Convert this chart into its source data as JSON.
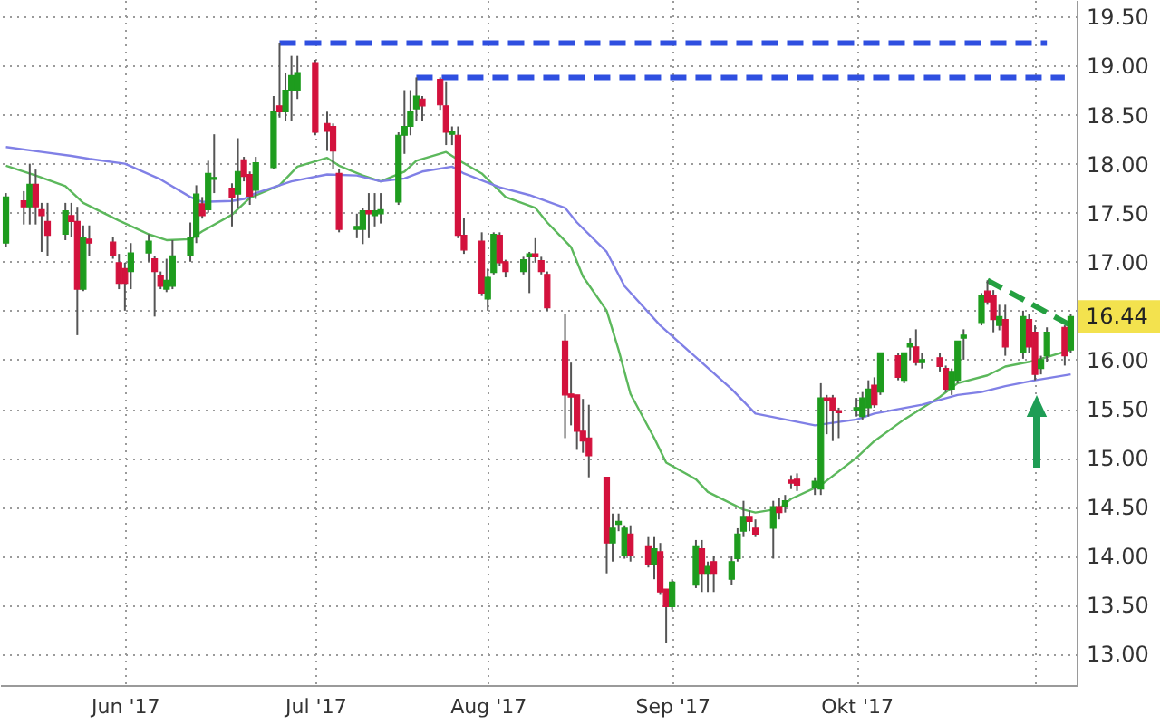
{
  "chart_data": {
    "type": "candlestick",
    "x": [
      "2017-05-12",
      "2017-05-15",
      "2017-05-16",
      "2017-05-17",
      "2017-05-18",
      "2017-05-19",
      "2017-05-22",
      "2017-05-23",
      "2017-05-24",
      "2017-05-25",
      "2017-05-26",
      "2017-05-30",
      "2017-05-31",
      "2017-06-01",
      "2017-06-02",
      "2017-06-05",
      "2017-06-06",
      "2017-06-07",
      "2017-06-08",
      "2017-06-09",
      "2017-06-12",
      "2017-06-13",
      "2017-06-14",
      "2017-06-15",
      "2017-06-16",
      "2017-06-19",
      "2017-06-20",
      "2017-06-21",
      "2017-06-22",
      "2017-06-23",
      "2017-06-26",
      "2017-06-27",
      "2017-06-28",
      "2017-06-29",
      "2017-06-30",
      "2017-07-03",
      "2017-07-05",
      "2017-07-06",
      "2017-07-07",
      "2017-07-10",
      "2017-07-11",
      "2017-07-12",
      "2017-07-13",
      "2017-07-14",
      "2017-07-17",
      "2017-07-18",
      "2017-07-19",
      "2017-07-20",
      "2017-07-21",
      "2017-07-24",
      "2017-07-25",
      "2017-07-26",
      "2017-07-27",
      "2017-07-28",
      "2017-07-31",
      "2017-08-01",
      "2017-08-02",
      "2017-08-03",
      "2017-08-04",
      "2017-08-07",
      "2017-08-08",
      "2017-08-09",
      "2017-08-10",
      "2017-08-11",
      "2017-08-14",
      "2017-08-15",
      "2017-08-16",
      "2017-08-17",
      "2017-08-18",
      "2017-08-21",
      "2017-08-22",
      "2017-08-23",
      "2017-08-24",
      "2017-08-25",
      "2017-08-28",
      "2017-08-29",
      "2017-08-30",
      "2017-08-31",
      "2017-09-01",
      "2017-09-05",
      "2017-09-06",
      "2017-09-07",
      "2017-09-08",
      "2017-09-11",
      "2017-09-12",
      "2017-09-13",
      "2017-09-14",
      "2017-09-15",
      "2017-09-18",
      "2017-09-19",
      "2017-09-20",
      "2017-09-21",
      "2017-09-22",
      "2017-09-25",
      "2017-09-26",
      "2017-09-27",
      "2017-09-28",
      "2017-09-29",
      "2017-10-02",
      "2017-10-03",
      "2017-10-04",
      "2017-10-05",
      "2017-10-06",
      "2017-10-09",
      "2017-10-10",
      "2017-10-11",
      "2017-10-12",
      "2017-10-13",
      "2017-10-16",
      "2017-10-17",
      "2017-10-18",
      "2017-10-19",
      "2017-10-20",
      "2017-10-23",
      "2017-10-24",
      "2017-10-25",
      "2017-10-26",
      "2017-10-27",
      "2017-10-30",
      "2017-10-31",
      "2017-11-01",
      "2017-11-02",
      "2017-11-03",
      "2017-11-06",
      "2017-11-07"
    ],
    "ohlc": [
      [
        17.19,
        17.7,
        17.15,
        17.66
      ],
      [
        17.62,
        17.72,
        17.38,
        17.56
      ],
      [
        17.56,
        18.0,
        17.38,
        17.79
      ],
      [
        17.79,
        17.94,
        17.38,
        17.56
      ],
      [
        17.53,
        17.6,
        17.1,
        17.47
      ],
      [
        17.41,
        17.6,
        17.06,
        17.27
      ],
      [
        17.28,
        17.6,
        17.22,
        17.52
      ],
      [
        17.47,
        17.6,
        17.25,
        17.41
      ],
      [
        17.41,
        17.56,
        16.25,
        16.72
      ],
      [
        16.72,
        17.37,
        16.7,
        17.25
      ],
      [
        17.23,
        17.37,
        17.06,
        17.19
      ],
      [
        17.2,
        17.25,
        17.03,
        17.06
      ],
      [
        16.99,
        17.08,
        16.72,
        16.78
      ],
      [
        16.93,
        16.99,
        16.5,
        16.78
      ],
      [
        16.9,
        17.19,
        16.72,
        17.09
      ],
      [
        17.09,
        17.28,
        17.0,
        17.21
      ],
      [
        17.03,
        17.06,
        16.44,
        16.9
      ],
      [
        16.86,
        16.9,
        16.72,
        16.75
      ],
      [
        16.72,
        17.03,
        16.69,
        16.81
      ],
      [
        16.75,
        17.22,
        16.72,
        17.06
      ],
      [
        17.06,
        17.4,
        17.0,
        17.25
      ],
      [
        17.25,
        17.78,
        17.19,
        17.69
      ],
      [
        17.59,
        17.66,
        17.44,
        17.47
      ],
      [
        17.53,
        18.03,
        17.5,
        17.9
      ],
      [
        17.84,
        18.3,
        17.7,
        17.86
      ],
      [
        17.75,
        17.8,
        17.36,
        17.65
      ],
      [
        17.69,
        18.26,
        17.55,
        17.92
      ],
      [
        18.04,
        18.07,
        17.82,
        17.87
      ],
      [
        17.89,
        17.92,
        17.58,
        17.67
      ],
      [
        17.73,
        18.07,
        17.64,
        18.01
      ],
      [
        17.96,
        18.69,
        17.95,
        18.53
      ],
      [
        18.59,
        19.23,
        18.47,
        18.53
      ],
      [
        18.53,
        18.93,
        18.44,
        18.75
      ],
      [
        18.75,
        19.1,
        18.44,
        18.9
      ],
      [
        18.75,
        19.1,
        18.66,
        18.93
      ],
      [
        19.03,
        19.06,
        18.29,
        18.32
      ],
      [
        18.41,
        18.53,
        18.13,
        18.33
      ],
      [
        18.38,
        18.41,
        17.95,
        18.13
      ],
      [
        17.9,
        17.95,
        17.3,
        17.33
      ],
      [
        17.33,
        17.49,
        17.24,
        17.36
      ],
      [
        17.33,
        17.55,
        17.18,
        17.52
      ],
      [
        17.52,
        17.7,
        17.24,
        17.49
      ],
      [
        17.47,
        17.7,
        17.36,
        17.52
      ],
      [
        17.49,
        17.7,
        17.39,
        17.53
      ],
      [
        17.61,
        18.32,
        17.58,
        18.29
      ],
      [
        18.29,
        18.75,
        18.1,
        18.38
      ],
      [
        18.38,
        18.75,
        18.29,
        18.53
      ],
      [
        18.56,
        18.88,
        18.44,
        18.69
      ],
      [
        18.66,
        18.69,
        18.44,
        18.59
      ],
      [
        18.86,
        18.88,
        18.55,
        18.6
      ],
      [
        18.59,
        18.84,
        18.19,
        18.32
      ],
      [
        18.3,
        18.38,
        18.19,
        18.33
      ],
      [
        18.29,
        18.38,
        17.24,
        17.27
      ],
      [
        17.27,
        17.45,
        17.08,
        17.12
      ],
      [
        17.21,
        17.3,
        16.65,
        16.68
      ],
      [
        16.62,
        16.93,
        16.5,
        16.84
      ],
      [
        16.89,
        17.3,
        16.87,
        17.28
      ],
      [
        17.27,
        17.3,
        16.96,
        16.99
      ],
      [
        17.0,
        17.02,
        16.84,
        16.9
      ],
      [
        16.9,
        17.05,
        16.87,
        17.02
      ],
      [
        17.05,
        17.1,
        16.68,
        17.08
      ],
      [
        17.08,
        17.24,
        16.99,
        17.05
      ],
      [
        17.01,
        17.05,
        16.87,
        16.9
      ],
      [
        16.87,
        16.9,
        16.5,
        16.53
      ],
      [
        16.19,
        16.47,
        15.2,
        15.64
      ],
      [
        15.65,
        15.97,
        15.33,
        15.62
      ],
      [
        15.64,
        15.64,
        15.08,
        15.27
      ],
      [
        15.27,
        15.6,
        15.05,
        15.17
      ],
      [
        15.2,
        15.54,
        14.8,
        15.02
      ],
      [
        14.8,
        14.8,
        13.82,
        14.13
      ],
      [
        14.13,
        14.43,
        13.94,
        14.28
      ],
      [
        14.32,
        14.43,
        14.25,
        14.35
      ],
      [
        14.0,
        14.31,
        13.97,
        14.28
      ],
      [
        14.22,
        14.31,
        13.94,
        14.0
      ],
      [
        14.1,
        14.19,
        13.88,
        13.91
      ],
      [
        13.91,
        14.19,
        13.76,
        14.07
      ],
      [
        14.04,
        14.13,
        13.6,
        13.63
      ],
      [
        13.66,
        13.66,
        13.11,
        13.48
      ],
      [
        13.48,
        13.76,
        13.45,
        13.73
      ],
      [
        13.7,
        14.16,
        13.67,
        14.1
      ],
      [
        14.07,
        14.16,
        13.63,
        13.82
      ],
      [
        13.82,
        13.94,
        13.63,
        13.89
      ],
      [
        13.94,
        14.0,
        13.63,
        13.82
      ],
      [
        13.76,
        14.0,
        13.7,
        13.94
      ],
      [
        13.97,
        14.28,
        13.94,
        14.22
      ],
      [
        14.25,
        14.56,
        14.19,
        14.4
      ],
      [
        14.4,
        14.46,
        14.25,
        14.35
      ],
      [
        14.28,
        14.37,
        14.19,
        14.22
      ],
      [
        14.28,
        14.56,
        13.97,
        14.5
      ],
      [
        14.5,
        14.59,
        14.37,
        14.44
      ],
      [
        14.5,
        14.62,
        14.44,
        14.56
      ],
      [
        14.77,
        14.82,
        14.68,
        14.74
      ],
      [
        14.78,
        14.84,
        14.66,
        14.72
      ],
      [
        14.7,
        14.8,
        14.62,
        14.76
      ],
      [
        14.68,
        15.76,
        14.62,
        15.61
      ],
      [
        15.61,
        15.64,
        15.24,
        15.58
      ],
      [
        15.61,
        15.64,
        15.17,
        15.48
      ],
      [
        15.48,
        15.51,
        15.2,
        15.46
      ],
      [
        15.48,
        15.61,
        15.42,
        15.51
      ],
      [
        15.42,
        15.67,
        15.39,
        15.61
      ],
      [
        15.51,
        15.79,
        15.42,
        15.7
      ],
      [
        15.74,
        15.82,
        15.51,
        15.54
      ],
      [
        15.67,
        16.07,
        15.64,
        16.07
      ],
      [
        16.04,
        16.07,
        15.79,
        15.82
      ],
      [
        15.79,
        16.07,
        15.76,
        16.07
      ],
      [
        16.13,
        16.22,
        16.0,
        16.16
      ],
      [
        16.13,
        16.31,
        15.94,
        15.97
      ],
      [
        15.97,
        16.07,
        15.91,
        16.0
      ],
      [
        16.02,
        16.07,
        15.88,
        15.93
      ],
      [
        15.91,
        15.94,
        15.67,
        15.7
      ],
      [
        15.7,
        15.91,
        15.64,
        15.88
      ],
      [
        15.79,
        16.19,
        15.76,
        16.19
      ],
      [
        16.22,
        16.31,
        16.0,
        16.25
      ],
      [
        16.38,
        16.68,
        16.35,
        16.65
      ],
      [
        16.7,
        16.81,
        16.56,
        16.59
      ],
      [
        16.66,
        16.71,
        16.28,
        16.41
      ],
      [
        16.35,
        16.56,
        16.3,
        16.44
      ],
      [
        16.41,
        16.56,
        16.04,
        16.13
      ],
      [
        16.07,
        16.5,
        16.01,
        16.44
      ],
      [
        16.41,
        16.47,
        16.07,
        16.13
      ],
      [
        16.28,
        16.35,
        15.79,
        15.85
      ],
      [
        15.91,
        16.04,
        15.85,
        16.0
      ],
      [
        16.04,
        16.33,
        15.98,
        16.28
      ],
      [
        16.33,
        16.35,
        15.94,
        16.04
      ],
      [
        16.1,
        16.47,
        16.07,
        16.44
      ]
    ],
    "colors": [
      "#1e9c1e",
      "#d3123d",
      "#1e9c1e",
      "#d3123d",
      "#d3123d",
      "#d3123d",
      "#1e9c1e",
      "#d3123d",
      "#d3123d",
      "#1e9c1e",
      "#d3123d",
      "#d3123d",
      "#d3123d",
      "#d3123d",
      "#1e9c1e",
      "#1e9c1e",
      "#d3123d",
      "#d3123d",
      "#1e9c1e",
      "#1e9c1e",
      "#1e9c1e",
      "#1e9c1e",
      "#d3123d",
      "#1e9c1e",
      "#1e9c1e",
      "#d3123d",
      "#1e9c1e",
      "#d3123d",
      "#d3123d",
      "#1e9c1e",
      "#1e9c1e",
      "#d3123d",
      "#1e9c1e",
      "#1e9c1e",
      "#1e9c1e",
      "#d3123d",
      "#d3123d",
      "#d3123d",
      "#d3123d",
      "#1e9c1e",
      "#1e9c1e",
      "#d3123d",
      "#1e9c1e",
      "#1e9c1e",
      "#1e9c1e",
      "#1e9c1e",
      "#1e9c1e",
      "#1e9c1e",
      "#d3123d",
      "#d3123d",
      "#d3123d",
      "#1e9c1e",
      "#d3123d",
      "#d3123d",
      "#d3123d",
      "#1e9c1e",
      "#1e9c1e",
      "#d3123d",
      "#d3123d",
      "#1e9c1e",
      "#1e9c1e",
      "#d3123d",
      "#d3123d",
      "#d3123d",
      "#d3123d",
      "#d3123d",
      "#d3123d",
      "#d3123d",
      "#d3123d",
      "#d3123d",
      "#1e9c1e",
      "#1e9c1e",
      "#1e9c1e",
      "#d3123d",
      "#d3123d",
      "#1e9c1e",
      "#d3123d",
      "#d3123d",
      "#1e9c1e",
      "#1e9c1e",
      "#d3123d",
      "#1e9c1e",
      "#d3123d",
      "#1e9c1e",
      "#1e9c1e",
      "#1e9c1e",
      "#d3123d",
      "#d3123d",
      "#1e9c1e",
      "#d3123d",
      "#1e9c1e",
      "#d3123d",
      "#d3123d",
      "#1e9c1e",
      "#1e9c1e",
      "#d3123d",
      "#d3123d",
      "#d3123d",
      "#1e9c1e",
      "#1e9c1e",
      "#1e9c1e",
      "#d3123d",
      "#1e9c1e",
      "#d3123d",
      "#1e9c1e",
      "#1e9c1e",
      "#d3123d",
      "#1e9c1e",
      "#d3123d",
      "#d3123d",
      "#1e9c1e",
      "#1e9c1e",
      "#1e9c1e",
      "#1e9c1e",
      "#d3123d",
      "#d3123d",
      "#1e9c1e",
      "#d3123d",
      "#1e9c1e",
      "#d3123d",
      "#d3123d",
      "#1e9c1e",
      "#1e9c1e",
      "#d3123d",
      "#1e9c1e"
    ],
    "series": [
      {
        "type": "line",
        "color": "#5cb85c",
        "x": [
          "2017-05-12",
          "2017-05-17",
          "2017-05-22",
          "2017-05-25",
          "2017-05-31",
          "2017-06-05",
          "2017-06-08",
          "2017-06-12",
          "2017-06-14",
          "2017-06-19",
          "2017-06-22",
          "2017-06-27",
          "2017-06-30",
          "2017-07-05",
          "2017-07-07",
          "2017-07-11",
          "2017-07-14",
          "2017-07-18",
          "2017-07-20",
          "2017-07-25",
          "2017-07-27",
          "2017-07-31",
          "2017-08-02",
          "2017-08-04",
          "2017-08-09",
          "2017-08-11",
          "2017-08-15",
          "2017-08-17",
          "2017-08-21",
          "2017-08-23",
          "2017-08-25",
          "2017-08-29",
          "2017-08-31",
          "2017-09-05",
          "2017-09-07",
          "2017-09-11",
          "2017-09-13",
          "2017-09-15",
          "2017-09-19",
          "2017-09-21",
          "2017-09-26",
          "2017-10-02",
          "2017-10-05",
          "2017-10-10",
          "2017-10-16",
          "2017-10-19",
          "2017-10-24",
          "2017-10-27",
          "2017-11-01",
          "2017-11-07"
        ],
        "values": [
          17.98,
          17.88,
          17.77,
          17.6,
          17.42,
          17.28,
          17.22,
          17.23,
          17.31,
          17.48,
          17.65,
          17.78,
          17.97,
          18.06,
          17.98,
          17.88,
          17.82,
          17.92,
          18.03,
          18.12,
          18.04,
          17.9,
          17.78,
          17.66,
          17.55,
          17.4,
          17.15,
          16.85,
          16.5,
          16.1,
          15.65,
          15.2,
          14.95,
          14.78,
          14.65,
          14.53,
          14.47,
          14.44,
          14.48,
          14.58,
          14.72,
          15.0,
          15.17,
          15.39,
          15.62,
          15.76,
          15.84,
          15.93,
          15.99,
          16.1
        ]
      },
      {
        "type": "line",
        "color": "#8080e6",
        "x": [
          "2017-05-12",
          "2017-05-18",
          "2017-05-23",
          "2017-05-26",
          "2017-06-01",
          "2017-06-07",
          "2017-06-12",
          "2017-06-14",
          "2017-06-19",
          "2017-06-21",
          "2017-06-23",
          "2017-06-29",
          "2017-07-05",
          "2017-07-10",
          "2017-07-14",
          "2017-07-18",
          "2017-07-21",
          "2017-07-26",
          "2017-07-28",
          "2017-08-03",
          "2017-08-08",
          "2017-08-14",
          "2017-08-16",
          "2017-08-21",
          "2017-08-24",
          "2017-08-30",
          "2017-09-06",
          "2017-09-11",
          "2017-09-15",
          "2017-09-20",
          "2017-09-25",
          "2017-10-02",
          "2017-10-05",
          "2017-10-13",
          "2017-10-19",
          "2017-10-23",
          "2017-10-27",
          "2017-11-01",
          "2017-11-07"
        ],
        "values": [
          18.17,
          18.12,
          18.08,
          18.05,
          18.0,
          17.84,
          17.66,
          17.61,
          17.62,
          17.64,
          17.7,
          17.82,
          17.89,
          17.88,
          17.82,
          17.85,
          17.92,
          17.97,
          17.9,
          17.76,
          17.68,
          17.55,
          17.4,
          17.1,
          16.75,
          16.35,
          15.97,
          15.7,
          15.45,
          15.39,
          15.33,
          15.39,
          15.45,
          15.54,
          15.64,
          15.67,
          15.73,
          15.79,
          15.85
        ]
      },
      {
        "type": "line",
        "color": "#2f4fe0",
        "line_style": "dashed",
        "x": [
          "2017-06-27",
          "2017-11-03"
        ],
        "values": [
          19.23,
          19.23
        ]
      },
      {
        "type": "line",
        "color": "#2f4fe0",
        "line_style": "dashed",
        "x": [
          "2017-07-20",
          "2017-11-06"
        ],
        "values": [
          18.88,
          18.88
        ]
      },
      {
        "type": "line",
        "color": "#24a040",
        "line_style": "dashed",
        "x": [
          "2017-10-24",
          "2017-11-07"
        ],
        "values": [
          16.81,
          16.35
        ]
      }
    ],
    "xlim": [
      "2017-05-11",
      "2017-11-08"
    ],
    "xticks": [
      {
        "value": "2017-06-01",
        "label": "Jun '17"
      },
      {
        "value": "2017-07-03",
        "label": "Jul '17"
      },
      {
        "value": "2017-08-01",
        "label": "Aug '17"
      },
      {
        "value": "2017-09-01",
        "label": "Sep '17"
      },
      {
        "value": "2017-10-02",
        "label": "Okt '17"
      },
      {
        "value": "2017-11-01",
        "label": null
      }
    ],
    "ylim": [
      12.68,
      19.67
    ],
    "yticks": [
      {
        "value": 13,
        "label": "13.00"
      },
      {
        "value": 13.5,
        "label": "13.50"
      },
      {
        "value": 14,
        "label": "14.00"
      },
      {
        "value": 14.5,
        "label": "14.50"
      },
      {
        "value": 15,
        "label": "15.00"
      },
      {
        "value": 15.5,
        "label": "15.50"
      },
      {
        "value": 16,
        "label": "16.00"
      },
      {
        "value": 16.5,
        "label": null
      },
      {
        "value": 17,
        "label": "17.00"
      },
      {
        "value": 17.5,
        "label": "17.50"
      },
      {
        "value": 18,
        "label": "18.00"
      },
      {
        "value": 18.5,
        "label": "18.50"
      },
      {
        "value": 19,
        "label": "19.00"
      },
      {
        "value": 19.5,
        "label": "19.50"
      }
    ],
    "grid": true,
    "annotations": [
      "16.44"
    ]
  }
}
